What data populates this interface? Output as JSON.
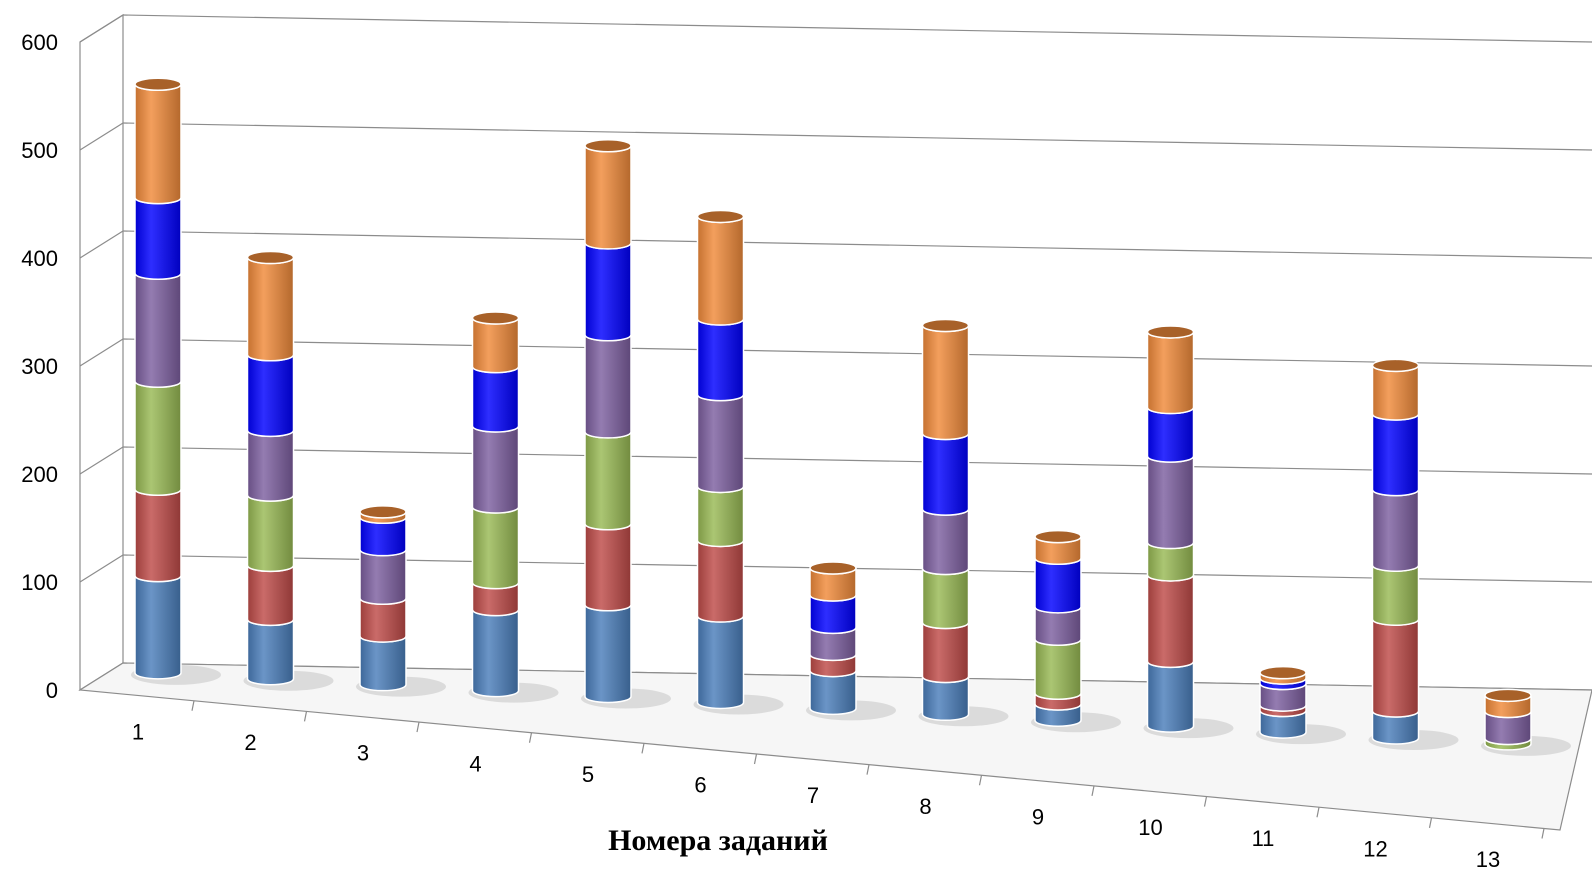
{
  "chart_data": {
    "type": "bar",
    "stacked": true,
    "style": "3d-cylinder",
    "title": "",
    "xlabel": "Номера заданий",
    "ylabel": "",
    "ylim": [
      0,
      600
    ],
    "yticks": [
      0,
      100,
      200,
      300,
      400,
      500,
      600
    ],
    "grid": true,
    "legend": "none",
    "categories": [
      "1",
      "2",
      "3",
      "4",
      "5",
      "6",
      "7",
      "8",
      "9",
      "10",
      "11",
      "12",
      "13"
    ],
    "series": [
      {
        "color": "#4A7EBB",
        "values": [
          90,
          55,
          45,
          75,
          85,
          80,
          35,
          35,
          15,
          60,
          20,
          25,
          0
        ]
      },
      {
        "color": "#BE4B48",
        "values": [
          80,
          50,
          35,
          25,
          75,
          70,
          15,
          50,
          10,
          80,
          5,
          85,
          0
        ]
      },
      {
        "color": "#98B954",
        "values": [
          100,
          65,
          0,
          70,
          85,
          50,
          0,
          50,
          50,
          30,
          0,
          50,
          5
        ]
      },
      {
        "color": "#7D5FA0",
        "values": [
          100,
          60,
          45,
          75,
          90,
          85,
          25,
          55,
          30,
          80,
          20,
          70,
          25
        ]
      },
      {
        "color": "#0000FF",
        "values": [
          70,
          70,
          30,
          55,
          85,
          70,
          30,
          70,
          45,
          45,
          5,
          70,
          0
        ]
      },
      {
        "color": "#F08A3A",
        "values": [
          105,
          90,
          5,
          45,
          90,
          95,
          25,
          100,
          20,
          70,
          5,
          45,
          15
        ]
      }
    ]
  }
}
